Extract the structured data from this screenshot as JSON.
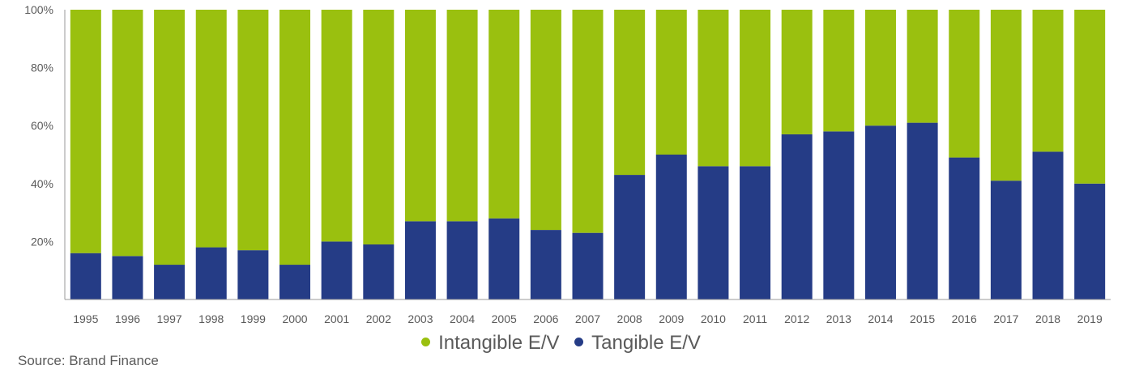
{
  "chart_data": {
    "type": "bar",
    "stacked": true,
    "categories": [
      "1995",
      "1996",
      "1997",
      "1998",
      "1999",
      "2000",
      "2001",
      "2002",
      "2003",
      "2004",
      "2005",
      "2006",
      "2007",
      "2008",
      "2009",
      "2010",
      "2011",
      "2012",
      "2013",
      "2014",
      "2015",
      "2016",
      "2017",
      "2018",
      "2019"
    ],
    "series": [
      {
        "name": "Tangible E/V",
        "color": "#253c86",
        "values": [
          16,
          15,
          12,
          18,
          17,
          12,
          20,
          19,
          27,
          27,
          28,
          24,
          23,
          43,
          50,
          46,
          46,
          57,
          58,
          60,
          61,
          49,
          41,
          51,
          40
        ]
      },
      {
        "name": "Intangible E/V",
        "color": "#9ac00f",
        "values": [
          84,
          85,
          88,
          82,
          83,
          88,
          80,
          81,
          73,
          73,
          72,
          76,
          77,
          57,
          50,
          54,
          54,
          43,
          42,
          40,
          39,
          51,
          59,
          49,
          60
        ]
      }
    ],
    "ylim": [
      0,
      100
    ],
    "yticks": [
      20,
      40,
      60,
      80,
      100
    ],
    "ytick_labels": [
      "20%",
      "40%",
      "60%",
      "80%",
      "100%"
    ],
    "title": "",
    "xlabel": "",
    "ylabel": "",
    "legend_position": "bottom-center"
  },
  "legend": [
    {
      "label": "Intangible E/V",
      "color": "#9ac00f"
    },
    {
      "label": "Tangible E/V",
      "color": "#253c86"
    }
  ],
  "source": "Source: Brand Finance"
}
